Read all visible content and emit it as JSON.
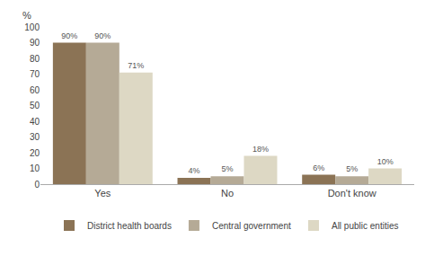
{
  "chart_data": {
    "type": "bar",
    "categories": [
      "Yes",
      "No",
      "Don't know"
    ],
    "series": [
      {
        "name": "District health boards",
        "color": "#8B7355",
        "values": [
          90,
          4,
          6
        ],
        "value_labels": [
          "90%",
          "4%",
          "6%"
        ]
      },
      {
        "name": "Central government",
        "color": "#b5aa96",
        "values": [
          90,
          5,
          5
        ],
        "value_labels": [
          "90%",
          "5%",
          "5%"
        ]
      },
      {
        "name": "All public entities",
        "color": "#ddd8c4",
        "values": [
          71,
          18,
          10
        ],
        "value_labels": [
          "71%",
          "18%",
          "10%"
        ]
      }
    ],
    "ylabel": "%",
    "ylim": [
      0,
      100
    ],
    "yticks": [
      0,
      10,
      20,
      30,
      40,
      50,
      60,
      70,
      80,
      90,
      100
    ],
    "grid": false,
    "legend": "bottom",
    "data_labels": true
  }
}
